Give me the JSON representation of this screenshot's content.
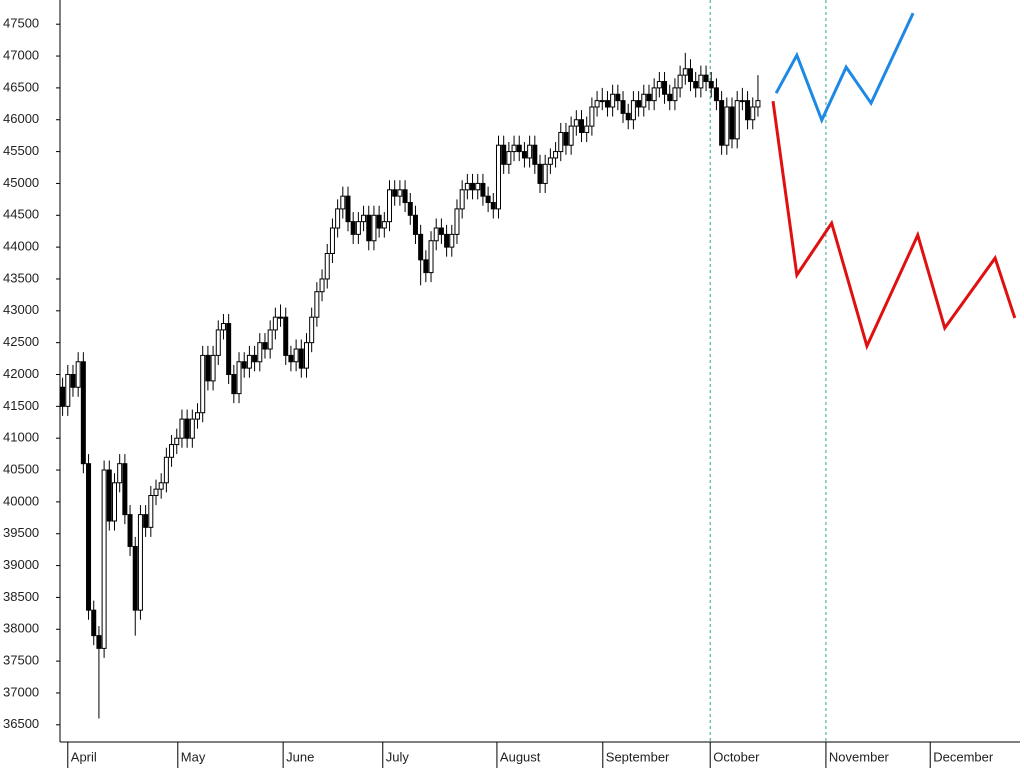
{
  "chart_data": {
    "type": "candlestick",
    "ylim": [
      36230,
      47880
    ],
    "yticks": [
      36500,
      37000,
      37500,
      38000,
      38500,
      39000,
      39500,
      40000,
      40500,
      41000,
      41500,
      42000,
      42500,
      43000,
      43500,
      44000,
      44500,
      45000,
      45500,
      46000,
      46500,
      47000,
      47500
    ],
    "xlim": [
      -0.5,
      184.5
    ],
    "xticks": [
      {
        "value": 1,
        "label": "April"
      },
      {
        "value": 22.2,
        "label": "May"
      },
      {
        "value": 42.5,
        "label": "June"
      },
      {
        "value": 61.7,
        "label": "July"
      },
      {
        "value": 83.7,
        "label": "August"
      },
      {
        "value": 104.1,
        "label": "September"
      },
      {
        "value": 124.8,
        "label": "October"
      },
      {
        "value": 147.1,
        "label": "November"
      },
      {
        "value": 167.2,
        "label": "December"
      }
    ],
    "vlines": [
      124.8,
      147.1
    ],
    "up_color": "#ffffff",
    "down_color": "#000000",
    "open": [
      41800,
      41500,
      42000,
      41800,
      42200,
      40600,
      38300,
      37900,
      37700,
      40500,
      39700,
      40300,
      40600,
      39800,
      39300,
      38300,
      39800,
      39600,
      40100,
      40200,
      40300,
      40700,
      40900,
      41000,
      41300,
      41000,
      41300,
      41400,
      42300,
      41900,
      42300,
      42700,
      42800,
      42000,
      41700,
      42200,
      42100,
      42300,
      42200,
      42500,
      42400,
      42700,
      42900,
      42900,
      42300,
      42200,
      42400,
      42100,
      42500,
      42900,
      43300,
      43500,
      43900,
      44300,
      44600,
      44800,
      44400,
      44200,
      44400,
      44500,
      44100,
      44500,
      44300,
      44400,
      44900,
      44800,
      44900,
      44700,
      44500,
      44200,
      43800,
      43600,
      44100,
      44300,
      44200,
      44000,
      44200,
      44600,
      44900,
      45000,
      44900,
      45000,
      44800,
      44700,
      44600,
      45600,
      45300,
      45500,
      45600,
      45500,
      45400,
      45600,
      45300,
      45000,
      45300,
      45400,
      45500,
      45800,
      45600,
      45900,
      46000,
      45800,
      45900,
      46200,
      46300,
      46300,
      46200,
      46400,
      46300,
      46100,
      46000,
      46300,
      46200,
      46400,
      46300,
      46500,
      46600,
      46400,
      46300,
      46500,
      46700,
      46800,
      46600,
      46500,
      46700,
      46600,
      46500,
      46300,
      45600,
      46200,
      45700,
      46300,
      46300,
      46000,
      46200
    ],
    "high": [
      41950,
      42150,
      42150,
      42350,
      42350,
      40750,
      38450,
      38050,
      40650,
      40650,
      40450,
      40750,
      40750,
      39950,
      39450,
      39950,
      39950,
      40250,
      40350,
      40450,
      40850,
      41050,
      41150,
      41450,
      41450,
      41450,
      41550,
      42450,
      42450,
      42450,
      42850,
      42950,
      42950,
      42150,
      42350,
      42350,
      42450,
      42450,
      42650,
      42650,
      42850,
      43050,
      43100,
      43050,
      42450,
      42550,
      42550,
      42650,
      43050,
      43450,
      43650,
      44050,
      44450,
      44750,
      44950,
      44950,
      44550,
      44550,
      44650,
      44650,
      44650,
      44650,
      44550,
      45050,
      45050,
      45050,
      45050,
      44850,
      44650,
      44350,
      43950,
      44250,
      44450,
      44450,
      44350,
      44350,
      44750,
      45050,
      45150,
      45150,
      45150,
      45150,
      44950,
      44850,
      45750,
      45750,
      45650,
      45750,
      45750,
      45650,
      45750,
      45750,
      45450,
      45450,
      45550,
      45650,
      45950,
      45950,
      46050,
      46150,
      46150,
      46050,
      46350,
      46450,
      46500,
      46450,
      46550,
      46550,
      46450,
      46250,
      46450,
      46450,
      46550,
      46550,
      46650,
      46750,
      46750,
      46550,
      46650,
      46850,
      47050,
      46950,
      46750,
      46850,
      46850,
      46750,
      46650,
      46450,
      46350,
      46350,
      46450,
      46500,
      46450,
      46350,
      46700
    ],
    "low": [
      41350,
      41350,
      41650,
      41650,
      40450,
      38150,
      37750,
      36600,
      37550,
      39550,
      39550,
      40150,
      39650,
      39150,
      37900,
      38150,
      39450,
      39450,
      39950,
      40050,
      40150,
      40550,
      40750,
      40850,
      40850,
      40850,
      41150,
      41250,
      41750,
      41750,
      42150,
      42550,
      41850,
      41550,
      41550,
      41950,
      41950,
      42050,
      42050,
      42250,
      42250,
      42550,
      42750,
      42150,
      42050,
      42050,
      41950,
      41950,
      42350,
      42750,
      43150,
      43350,
      43750,
      44150,
      44450,
      44250,
      44050,
      44050,
      44250,
      43950,
      43950,
      44150,
      44150,
      44250,
      44650,
      44650,
      44550,
      44350,
      44050,
      43400,
      43450,
      43450,
      43950,
      44050,
      43850,
      43850,
      44050,
      44450,
      44750,
      44750,
      44750,
      44650,
      44550,
      44450,
      44450,
      45150,
      45150,
      45350,
      45350,
      45250,
      45250,
      45150,
      44850,
      44850,
      45150,
      45250,
      45350,
      45450,
      45450,
      45750,
      45650,
      45650,
      45750,
      46050,
      46150,
      46050,
      46050,
      46150,
      45950,
      45850,
      45850,
      46050,
      46050,
      46150,
      46150,
      46350,
      46250,
      46150,
      46150,
      46350,
      46550,
      46450,
      46350,
      46350,
      46450,
      46350,
      46150,
      45450,
      45450,
      45550,
      45550,
      46150,
      45850,
      45850,
      46050
    ],
    "close": [
      41500,
      42000,
      41800,
      42200,
      40600,
      38300,
      37900,
      37700,
      40500,
      39700,
      40300,
      40600,
      39800,
      39300,
      38300,
      39800,
      39600,
      40100,
      40200,
      40300,
      40700,
      40900,
      41000,
      41300,
      41000,
      41300,
      41400,
      42300,
      41900,
      42300,
      42700,
      42800,
      42000,
      41700,
      42200,
      42100,
      42300,
      42200,
      42500,
      42400,
      42700,
      42900,
      42900,
      42300,
      42200,
      42400,
      42100,
      42500,
      42900,
      43300,
      43500,
      43900,
      44300,
      44600,
      44800,
      44400,
      44200,
      44400,
      44500,
      44100,
      44500,
      44300,
      44400,
      44900,
      44800,
      44900,
      44700,
      44500,
      44200,
      43800,
      43600,
      44100,
      44300,
      44200,
      44000,
      44200,
      44600,
      44900,
      45000,
      44900,
      45000,
      44800,
      44700,
      44600,
      45600,
      45300,
      45500,
      45600,
      45500,
      45400,
      45600,
      45300,
      45000,
      45300,
      45400,
      45500,
      45800,
      45600,
      45900,
      46000,
      45800,
      45900,
      46200,
      46300,
      46300,
      46200,
      46400,
      46300,
      46100,
      46000,
      46300,
      46200,
      46400,
      46300,
      46500,
      46600,
      46400,
      46300,
      46500,
      46700,
      46800,
      46600,
      46500,
      46700,
      46600,
      46500,
      46300,
      45600,
      46200,
      45700,
      46300,
      46300,
      46000,
      46200,
      46300
    ],
    "projections": [
      {
        "color": "#1e88e5",
        "x": [
          137.5,
          141.5,
          146.3,
          151,
          155.8,
          163.9
        ],
        "values": [
          46417,
          47014,
          45994,
          46825,
          46260,
          47673
        ]
      },
      {
        "color": "#e01010",
        "x": [
          136.9,
          141.5,
          148.2,
          155,
          164.8,
          170,
          179.7,
          183.5
        ],
        "values": [
          46292,
          43562,
          44377,
          42447,
          44189,
          42730,
          43828,
          42887
        ]
      }
    ]
  }
}
